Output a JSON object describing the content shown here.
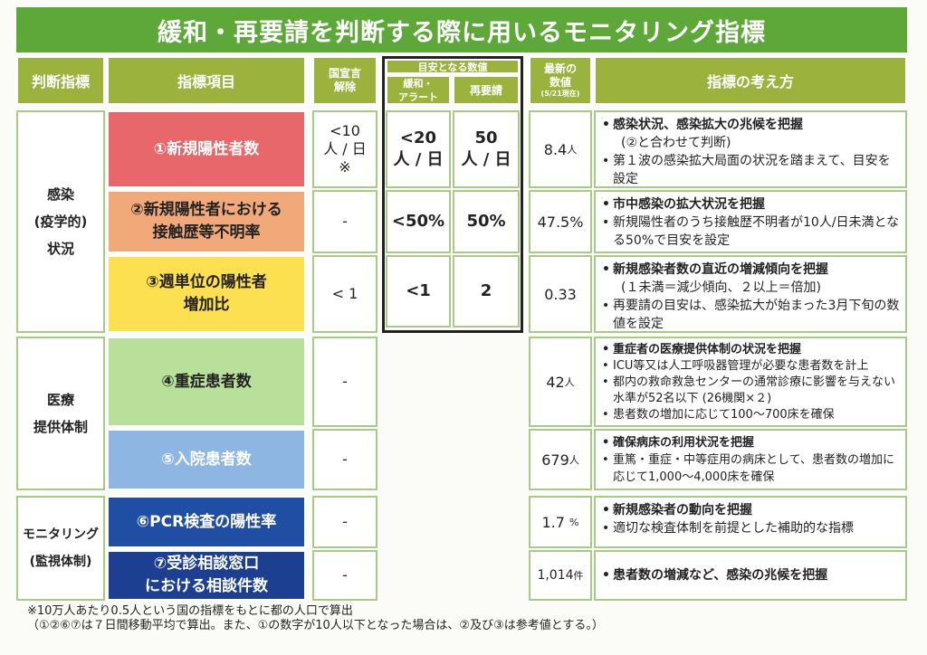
{
  "title": "緩和・再要請を判断する際に用いるモニタリング指標",
  "headers": {
    "judgment": "判断指標",
    "item": "指標項目",
    "declaration": "国宣言\n解除",
    "target": "目安となる数値",
    "relax": "緩和・\nアラート",
    "rerequest": "再要請",
    "latest": "最新の\n数値",
    "latest_date": "(5/21現在)",
    "concept": "指標の考え方"
  },
  "categories": [
    {
      "label": "感染\n(疫学的)\n状況"
    },
    {
      "label": "医療\n提供体制"
    },
    {
      "label": "モニタリング\n(監視体制)"
    }
  ],
  "rows": [
    {
      "item": "①新規陽性者数",
      "color": "#e8676b",
      "declaration": "<10\n人 / 日\n※",
      "relax": "<20\n人 / 日",
      "rerequest": "50\n人 / 日",
      "latest": "8.4",
      "unit": "人",
      "notes": [
        {
          "t": "感染状況、感染拡大の兆候を把握",
          "b": true
        },
        {
          "t": "(②と合わせて判断)",
          "sub": true
        },
        {
          "t": "第１波の感染拡大局面の状況を踏まえて、目安を設定"
        }
      ]
    },
    {
      "item": "②新規陽性者における\n接触歴等不明率",
      "color": "#f2a97a",
      "declaration": "-",
      "relax": "<50%",
      "rerequest": "50%",
      "latest": "47.5%",
      "unit": "",
      "notes": [
        {
          "t": "市中感染の拡大状況を把握",
          "b": true
        },
        {
          "t": "新規陽性者のうち接触歴不明者が10人/日未満となる50%で目安を設定"
        }
      ]
    },
    {
      "item": "③週単位の陽性者\n増加比",
      "color": "#fde04f",
      "declaration": "< 1",
      "relax": "<1",
      "rerequest": "2",
      "latest": "0.33",
      "unit": "",
      "notes": [
        {
          "t": "新規感染者数の直近の増減傾向を把握",
          "b": true
        },
        {
          "t": "(１未満＝減少傾向、２以上＝倍加)",
          "sub": true
        },
        {
          "t": "再要請の目安は、感染拡大が始まった3月下旬の数値を設定"
        }
      ]
    },
    {
      "item": "④重症患者数",
      "color": "#b9e09a",
      "declaration": "-",
      "latest": "42",
      "unit": "人",
      "notes": [
        {
          "t": "重症者の医療提供体制の状況を把握",
          "b": true
        },
        {
          "t": "ICU等又は人工呼吸器管理が必要な患者数を計上"
        },
        {
          "t": "都内の救命救急センターの通常診療に影響を与えない水準が52名以下 (26機関×２)"
        },
        {
          "t": "患者数の増加に応じて100〜700床を確保"
        }
      ]
    },
    {
      "item": "⑤入院患者数",
      "color": "#8db6e2",
      "declaration": "-",
      "latest": "679",
      "unit": "人",
      "notes": [
        {
          "t": "確保病床の利用状況を把握",
          "b": true
        },
        {
          "t": "重篤・重症・中等症用の病床として、患者数の増加に応じて1,000〜4,000床を確保"
        }
      ]
    },
    {
      "item": "⑥PCR検査の陽性率",
      "color": "#1f4ea3",
      "declaration": "-",
      "latest": "1.7",
      "unit": "%",
      "notes": [
        {
          "t": "新規感染者の動向を把握",
          "b": true
        },
        {
          "t": "適切な検査体制を前提とした補助的な指標"
        }
      ]
    },
    {
      "item": "⑦受診相談窓口\nにおける相談件数",
      "color": "#1c3f91",
      "declaration": "-",
      "latest": "1,014",
      "unit": "件",
      "notes": [
        {
          "t": "患者数の増減など、感染の兆候を把握",
          "b": true
        }
      ]
    }
  ],
  "footnote": "※10万人あたり0.5人という国の指標をもとに都の人口で算出\n（①②⑥⑦は７日間移動平均で算出。また、①の数字が10人以下となった場合は、②及び③は参考値とする。）"
}
